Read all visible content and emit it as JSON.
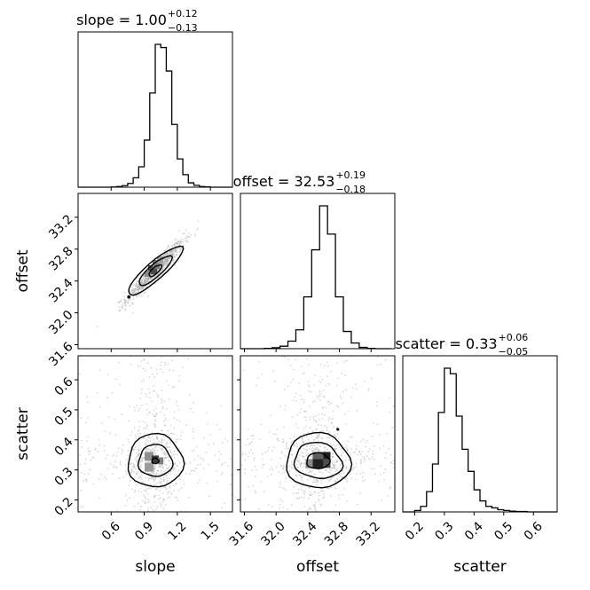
{
  "chart_data": [
    {
      "type": "histogram",
      "panel": "slope-marginal",
      "parameter": "slope",
      "title": {
        "prefix": "slope = ",
        "value": "1.00",
        "upper": "+0.12",
        "lower": "−0.13"
      },
      "xlim": [
        0.3,
        1.7
      ],
      "bins": [
        0.3,
        0.35,
        0.4,
        0.45,
        0.5,
        0.55,
        0.6,
        0.65,
        0.7,
        0.75,
        0.8,
        0.85,
        0.9,
        0.95,
        1.0,
        1.05,
        1.1,
        1.15,
        1.2,
        1.25,
        1.3,
        1.35,
        1.4,
        1.45,
        1.5,
        1.55,
        1.6,
        1.65,
        1.7
      ],
      "counts": [
        0,
        0,
        0,
        0,
        0,
        0,
        0.5,
        2,
        5,
        12,
        30,
        65,
        150,
        300,
        455,
        445,
        370,
        200,
        90,
        40,
        14,
        6,
        2,
        1,
        0,
        0,
        0,
        0
      ]
    },
    {
      "type": "histogram",
      "panel": "offset-marginal",
      "parameter": "offset",
      "title": {
        "prefix": "offset = ",
        "value": "32.53",
        "upper": "+0.19",
        "lower": "−0.18"
      },
      "xlim": [
        31.55,
        33.5
      ],
      "bins": [
        31.55,
        31.65,
        31.75,
        31.85,
        31.95,
        32.05,
        32.15,
        32.25,
        32.35,
        32.45,
        32.55,
        32.65,
        32.75,
        32.85,
        32.95,
        33.05,
        33.15,
        33.25,
        33.35,
        33.45
      ],
      "counts": [
        0,
        0,
        0,
        1,
        3,
        8,
        24,
        60,
        165,
        315,
        455,
        365,
        165,
        55,
        18,
        4,
        1,
        0,
        0
      ]
    },
    {
      "type": "histogram",
      "panel": "scatter-marginal",
      "parameter": "scatter",
      "title": {
        "prefix": "scatter = ",
        "value": "0.33",
        "upper": "+0.06",
        "lower": "−0.05"
      },
      "xlim": [
        0.16,
        0.68
      ],
      "bins": [
        0.16,
        0.18,
        0.2,
        0.22,
        0.24,
        0.26,
        0.28,
        0.3,
        0.32,
        0.34,
        0.36,
        0.38,
        0.4,
        0.42,
        0.44,
        0.46,
        0.48,
        0.5,
        0.52,
        0.54,
        0.56,
        0.58,
        0.6,
        0.62,
        0.64,
        0.66,
        0.68
      ],
      "counts": [
        0,
        0,
        4,
        15,
        55,
        130,
        270,
        390,
        375,
        260,
        170,
        110,
        60,
        30,
        15,
        11,
        6,
        4,
        2,
        1,
        1,
        0,
        0,
        0,
        0,
        0
      ]
    },
    {
      "type": "scatter",
      "panel": "slope-offset",
      "x_parameter": "slope",
      "y_parameter": "offset",
      "xlim": [
        0.3,
        1.7
      ],
      "ylim": [
        31.55,
        33.5
      ],
      "correlation": "strong positive",
      "center": [
        1.0,
        32.53
      ],
      "contours": 3
    },
    {
      "type": "scatter",
      "panel": "slope-scatter",
      "x_parameter": "slope",
      "y_parameter": "scatter",
      "xlim": [
        0.3,
        1.7
      ],
      "ylim": [
        0.16,
        0.68
      ],
      "center": [
        1.0,
        0.33
      ],
      "contours": 3
    },
    {
      "type": "scatter",
      "panel": "offset-scatter",
      "x_parameter": "offset",
      "y_parameter": "scatter",
      "xlim": [
        31.55,
        33.5
      ],
      "ylim": [
        0.16,
        0.68
      ],
      "center": [
        32.53,
        0.33
      ],
      "contours": 3
    }
  ],
  "labels": {
    "slope": "slope",
    "offset": "offset",
    "scatter": "scatter"
  },
  "ticks": {
    "slope": [
      0.6,
      0.9,
      1.2,
      1.5
    ],
    "slope_text": [
      "0.6",
      "0.9",
      "1.2",
      "1.5"
    ],
    "offset": [
      31.6,
      32.0,
      32.4,
      32.8,
      33.2
    ],
    "offset_text": [
      "31.6",
      "32.0",
      "32.4",
      "32.8",
      "33.2"
    ],
    "scatter_x": [
      0.2,
      0.3,
      0.4,
      0.5,
      0.6
    ],
    "scatter_x_text": [
      "0.2",
      "0.3",
      "0.4",
      "0.5",
      "0.6"
    ],
    "scatter_y": [
      0.2,
      0.3,
      0.4,
      0.5,
      0.6
    ],
    "scatter_y_text": [
      "0.2",
      "0.3",
      "0.4",
      "0.5",
      "0.6"
    ]
  }
}
